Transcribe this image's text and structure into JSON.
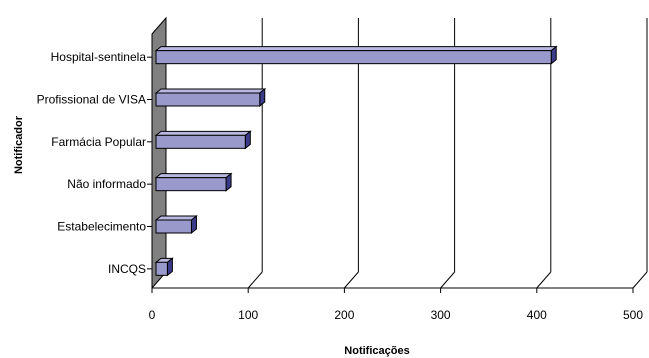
{
  "chart_data": {
    "type": "bar",
    "orientation": "horizontal",
    "three_d": true,
    "categories": [
      "Hospital-sentinela",
      "Profissional de VISA",
      "Farmácia Popular",
      "Não informado",
      "Estabelecimento",
      "INCQS"
    ],
    "values": [
      415,
      112,
      97,
      77,
      41,
      16
    ],
    "xlabel": "Notificações",
    "ylabel": "Notificador",
    "xlim": [
      0,
      500
    ],
    "xticks": [
      "0",
      "100",
      "200",
      "300",
      "400",
      "500"
    ],
    "grid": true,
    "legend": "none",
    "colors": {
      "bar_front": "#9999cc",
      "bar_top": "#b8b8e0",
      "bar_side": "#3b3b8a",
      "bar_edge": "#000000",
      "wall": "#808080"
    }
  }
}
